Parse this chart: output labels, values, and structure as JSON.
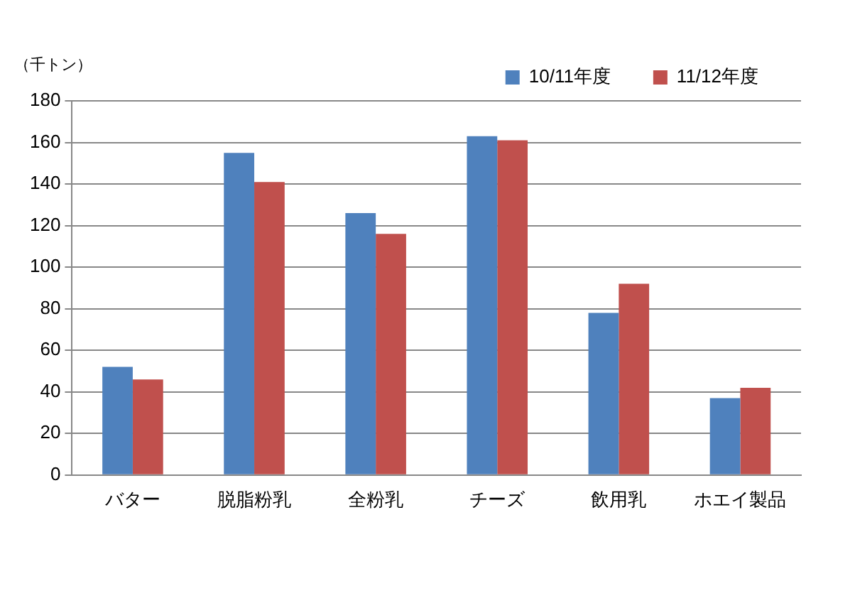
{
  "chart_data": {
    "type": "bar",
    "ylabel": "（千トン）",
    "categories": [
      "バター",
      "脱脂粉乳",
      "全粉乳",
      "チーズ",
      "飲用乳",
      "ホエイ製品"
    ],
    "series": [
      {
        "name": "10/11年度",
        "color": "#4f81bd",
        "values": [
          52,
          155,
          126,
          163,
          78,
          37
        ]
      },
      {
        "name": "11/12年度",
        "color": "#c0504d",
        "values": [
          46,
          141,
          116,
          161,
          92,
          42
        ]
      }
    ],
    "ylim": [
      0,
      180
    ],
    "yticks": [
      0,
      20,
      40,
      60,
      80,
      100,
      120,
      140,
      160,
      180
    ],
    "grid": "y",
    "legend": "top right"
  }
}
